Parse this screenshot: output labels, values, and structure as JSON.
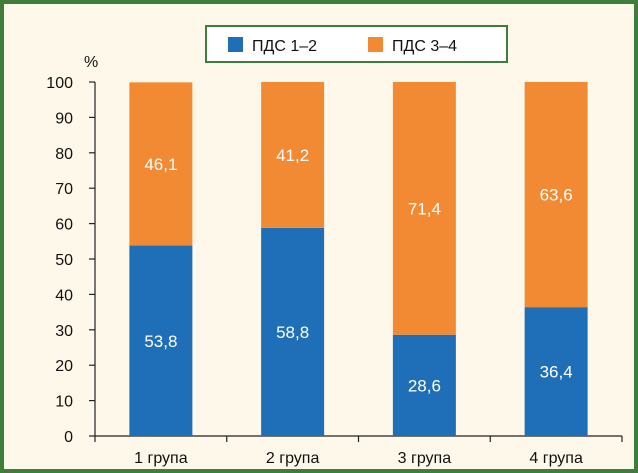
{
  "chart_data": {
    "type": "bar",
    "stacked": true,
    "title": "",
    "xlabel": "",
    "ylabel": "%",
    "ylim": [
      0,
      100
    ],
    "yticks": [
      0,
      10,
      20,
      30,
      40,
      50,
      60,
      70,
      80,
      90,
      100
    ],
    "categories": [
      "1 група",
      "2 група",
      "3 група",
      "4 група"
    ],
    "series": [
      {
        "name": "ПДС 1–2",
        "color": "#1f6fb8",
        "values": [
          53.8,
          58.8,
          28.6,
          36.4
        ],
        "labels": [
          "53,8",
          "58,8",
          "28,6",
          "36,4"
        ]
      },
      {
        "name": "ПДС 3–4",
        "color": "#f28a34",
        "values": [
          46.1,
          41.2,
          71.4,
          63.6
        ],
        "labels": [
          "46,1",
          "41,2",
          "71,4",
          "63,6"
        ]
      }
    ],
    "legend_position": "top-center",
    "grid": false
  },
  "colors": {
    "frame_border": "#3f7d3a",
    "background": "#fdf8e9"
  }
}
